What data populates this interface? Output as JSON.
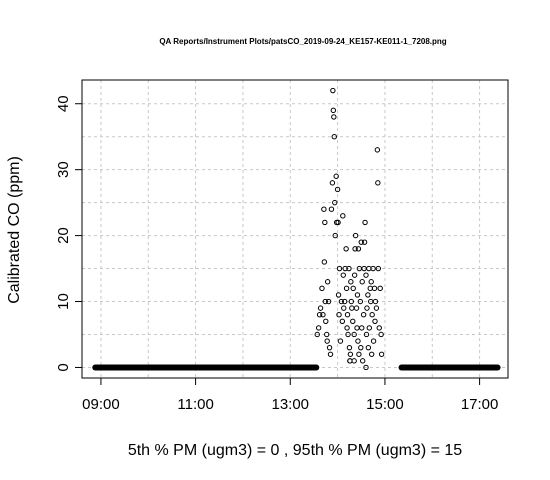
{
  "chart_data": {
    "type": "scatter",
    "title": "QA Reports/Instrument Plots/patsCO_2019-09-24_KE157-KE011-1_7208.png",
    "xlabel": "5th % PM (ugm3) =  0 , 95th % PM (ugm3)  =  15",
    "ylabel": "Calibrated CO (ppm)",
    "x_unit": "hours",
    "xlim": [
      8.6,
      17.6
    ],
    "ylim": [
      -1.6,
      43.6
    ],
    "x_ticks": [
      9,
      11,
      13,
      15,
      17
    ],
    "x_tick_labels": [
      "09:00",
      "11:00",
      "13:00",
      "15:00",
      "17:00"
    ],
    "y_ticks": [
      0,
      10,
      20,
      30,
      40
    ],
    "y_tick_labels": [
      "0",
      "10",
      "20",
      "30",
      "40"
    ],
    "grid": true,
    "grid_x": [
      9,
      10,
      11,
      12,
      13,
      14,
      15,
      16,
      17
    ],
    "grid_y": [
      0,
      5,
      10,
      15,
      20,
      25,
      30,
      35,
      40
    ],
    "baseline_segments": [
      {
        "x_start": 8.88,
        "x_end": 13.55,
        "y": 0
      },
      {
        "x_start": 15.35,
        "x_end": 17.38,
        "y": 0
      }
    ],
    "points": [
      [
        13.57,
        5
      ],
      [
        13.6,
        6
      ],
      [
        13.62,
        8
      ],
      [
        13.64,
        9
      ],
      [
        13.67,
        12
      ],
      [
        13.69,
        8
      ],
      [
        13.71,
        24
      ],
      [
        13.72,
        16
      ],
      [
        13.73,
        22
      ],
      [
        13.74,
        10
      ],
      [
        13.75,
        7
      ],
      [
        13.77,
        5
      ],
      [
        13.78,
        4
      ],
      [
        13.79,
        13
      ],
      [
        13.81,
        10
      ],
      [
        13.83,
        3
      ],
      [
        13.85,
        2
      ],
      [
        13.87,
        24
      ],
      [
        13.89,
        28
      ],
      [
        13.9,
        42
      ],
      [
        13.91,
        39
      ],
      [
        13.92,
        38
      ],
      [
        13.93,
        35
      ],
      [
        13.94,
        25
      ],
      [
        13.95,
        20
      ],
      [
        13.97,
        29
      ],
      [
        13.98,
        22
      ],
      [
        14.0,
        27
      ],
      [
        14.01,
        22
      ],
      [
        14.02,
        11
      ],
      [
        14.03,
        8
      ],
      [
        14.04,
        15
      ],
      [
        14.06,
        4
      ],
      [
        14.08,
        10
      ],
      [
        14.1,
        7
      ],
      [
        14.11,
        23
      ],
      [
        14.12,
        14
      ],
      [
        14.13,
        9
      ],
      [
        14.15,
        10
      ],
      [
        14.16,
        15
      ],
      [
        14.18,
        18
      ],
      [
        14.19,
        12
      ],
      [
        14.2,
        6
      ],
      [
        14.21,
        8
      ],
      [
        14.22,
        5
      ],
      [
        14.24,
        15
      ],
      [
        14.25,
        3
      ],
      [
        14.26,
        1
      ],
      [
        14.27,
        2
      ],
      [
        14.28,
        13
      ],
      [
        14.29,
        10
      ],
      [
        14.3,
        9
      ],
      [
        14.32,
        7
      ],
      [
        14.33,
        12
      ],
      [
        14.35,
        5
      ],
      [
        14.36,
        14
      ],
      [
        14.37,
        18
      ],
      [
        14.38,
        20
      ],
      [
        14.4,
        9
      ],
      [
        14.41,
        6
      ],
      [
        14.42,
        11
      ],
      [
        14.43,
        4
      ],
      [
        14.44,
        18
      ],
      [
        14.45,
        2
      ],
      [
        14.46,
        15
      ],
      [
        14.48,
        10
      ],
      [
        14.49,
        3
      ],
      [
        14.5,
        19
      ],
      [
        14.51,
        6
      ],
      [
        14.52,
        13
      ],
      [
        14.53,
        1
      ],
      [
        14.55,
        8
      ],
      [
        14.56,
        15
      ],
      [
        14.57,
        19
      ],
      [
        14.58,
        22
      ],
      [
        14.6,
        14
      ],
      [
        14.61,
        5
      ],
      [
        14.62,
        9
      ],
      [
        14.64,
        11
      ],
      [
        14.65,
        3
      ],
      [
        14.66,
        15
      ],
      [
        14.67,
        6
      ],
      [
        14.69,
        12
      ],
      [
        14.7,
        10
      ],
      [
        14.71,
        13
      ],
      [
        14.72,
        2
      ],
      [
        14.73,
        8
      ],
      [
        14.75,
        15
      ],
      [
        14.76,
        4
      ],
      [
        14.78,
        12
      ],
      [
        14.79,
        7
      ],
      [
        14.8,
        10
      ],
      [
        14.82,
        9
      ],
      [
        14.84,
        33
      ],
      [
        14.85,
        28
      ],
      [
        14.86,
        15
      ],
      [
        14.88,
        6
      ],
      [
        14.9,
        12
      ],
      [
        14.92,
        5
      ],
      [
        14.93,
        2
      ],
      [
        13.55,
        0
      ],
      [
        14.26,
        1
      ],
      [
        14.6,
        0
      ],
      [
        14.35,
        1
      ]
    ]
  }
}
